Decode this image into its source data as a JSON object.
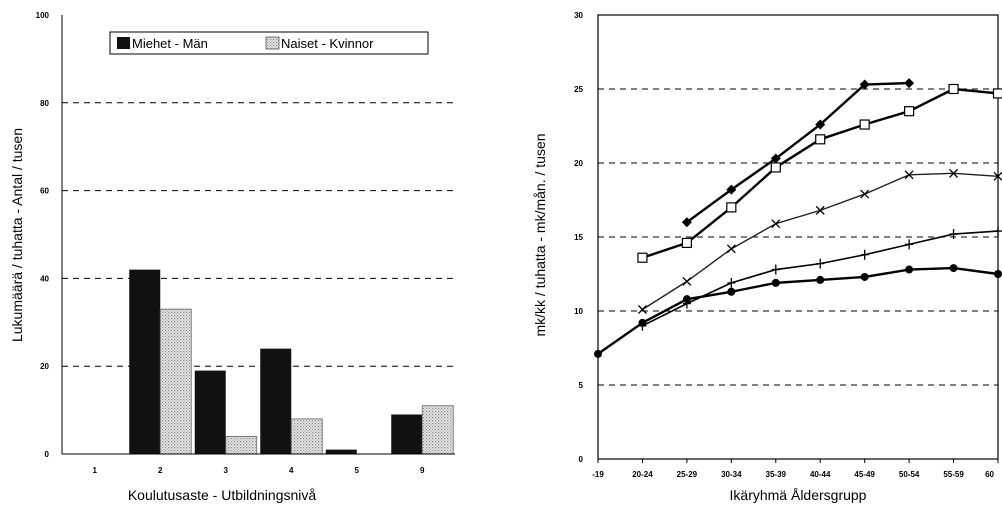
{
  "chart_data": [
    {
      "type": "bar",
      "title": "",
      "xlabel": "Koulutusaste - Utbildningsnivå",
      "ylabel": "Lukumäärä / tuhatta - Antal / tusen",
      "categories": [
        "1",
        "2",
        "3",
        "4",
        "5",
        "9"
      ],
      "ylim": [
        0,
        100
      ],
      "yticks": [
        0,
        20,
        40,
        60,
        80,
        100
      ],
      "grid": "dashed horizontal at 20, 40, 60, 80",
      "legend_position": "top",
      "series": [
        {
          "name": "Miehet - Män",
          "values": [
            0,
            42,
            19,
            24,
            1,
            9
          ],
          "style": "solid black"
        },
        {
          "name": "Naiset - Kvinnor",
          "values": [
            0,
            33,
            4,
            8,
            0,
            11
          ],
          "style": "light gray dotted"
        }
      ]
    },
    {
      "type": "line",
      "title": "",
      "xlabel": "Ikäryhmä Åldersgrupp",
      "ylabel": "mk/kk / tuhatta - mk/mån. / tusen",
      "x": [
        "-19",
        "20-24",
        "25-29",
        "30-34",
        "35-39",
        "40-44",
        "45-49",
        "50-54",
        "55-59",
        "60"
      ],
      "ylim": [
        0,
        30
      ],
      "yticks": [
        0,
        5,
        10,
        15,
        20,
        25,
        30
      ],
      "grid": "dashed horizontal at 5, 10, 15, 20, 25",
      "legend_position": "none",
      "series": [
        {
          "marker": "diamond",
          "values": [
            null,
            null,
            16,
            18.2,
            20.3,
            22.6,
            25.3,
            25.4,
            null,
            null
          ]
        },
        {
          "marker": "square",
          "values": [
            null,
            13.6,
            14.6,
            17,
            19.7,
            21.6,
            22.6,
            23.5,
            25,
            24.7
          ]
        },
        {
          "marker": "x",
          "values": [
            null,
            10.1,
            12,
            14.2,
            15.9,
            16.8,
            17.9,
            19.2,
            19.3,
            19.1
          ]
        },
        {
          "marker": "plus",
          "values": [
            null,
            9,
            10.5,
            11.9,
            12.8,
            13.2,
            13.8,
            14.5,
            15.2,
            15.4
          ]
        },
        {
          "marker": "circle",
          "values": [
            7.1,
            9.2,
            10.8,
            11.3,
            11.9,
            12.1,
            12.3,
            12.8,
            12.9,
            12.5
          ]
        }
      ]
    }
  ]
}
